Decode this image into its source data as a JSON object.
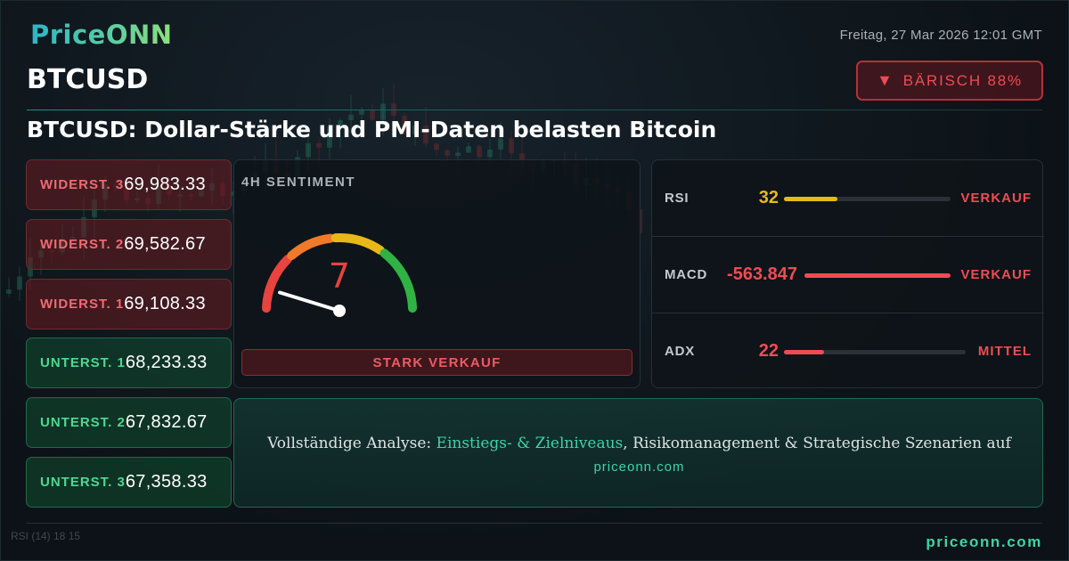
{
  "brand": {
    "logo": "PriceONN"
  },
  "header": {
    "datetime": "Freitag, 27 Mar 2026 12:01 GMT",
    "symbol": "BTCUSD",
    "headline": "BTCUSD: Dollar-Stärke und PMI-Daten belasten Bitcoin"
  },
  "sentiment_badge": {
    "icon": "triangle-down-icon",
    "label": "BÄRISCH 88%",
    "color": "#ef4b55"
  },
  "levels": [
    {
      "type": "resistance",
      "label": "WIDERST. 3",
      "value": "69,983.33"
    },
    {
      "type": "resistance",
      "label": "WIDERST. 2",
      "value": "69,582.67"
    },
    {
      "type": "resistance",
      "label": "WIDERST. 1",
      "value": "69,108.33"
    },
    {
      "type": "support",
      "label": "UNTERST. 1",
      "value": "68,233.33"
    },
    {
      "type": "support",
      "label": "UNTERST. 2",
      "value": "67,832.67"
    },
    {
      "type": "support",
      "label": "UNTERST. 3",
      "value": "67,358.33"
    }
  ],
  "sentiment": {
    "title": "4H SENTIMENT",
    "score": "7",
    "label": "STARK VERKAUF",
    "needle_angle_deg": 163,
    "colors": {
      "red": "#e8433f",
      "orange": "#f07a2a",
      "yellow": "#e8b819",
      "green": "#2fb344"
    }
  },
  "indicators": [
    {
      "name": "RSI",
      "value": "32",
      "value_color": "#e8b819",
      "fill_fraction": 0.32,
      "fill_color": "#e8b819",
      "signal": "VERKAUF",
      "signal_color": "#ef4b55"
    },
    {
      "name": "MACD",
      "value": "-563.847",
      "value_color": "#ef4b55",
      "fill_fraction": 1.0,
      "fill_color": "#ef4b55",
      "signal": "VERKAUF",
      "signal_color": "#ef4b55"
    },
    {
      "name": "ADX",
      "value": "22",
      "value_color": "#ef4b55",
      "fill_fraction": 0.22,
      "fill_color": "#ef4b55",
      "signal": "MITTEL",
      "signal_color": "#ef4b55"
    }
  ],
  "cta": {
    "prefix": "Vollständige Analyse: ",
    "highlight": "Einstiegs- & Zielniveaus",
    "suffix": ", Risikomanagement & Strategische Szenarien auf",
    "url": "priceonn.com"
  },
  "footer": {
    "url": "priceonn.com",
    "rsi_ghost": "RSI  (14)  18 15"
  }
}
